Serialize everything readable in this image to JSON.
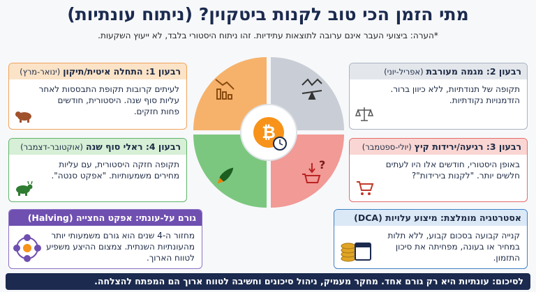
{
  "header": {
    "title": "מתי הזמן הכי טוב לקנות ביטקוין? (ניתוח עונתיות)",
    "note": "*הערה: ביצועי העבר אינם ערובה לתוצאות עתידיות. זהו ניתוח היסטורי בלבד, לא ייעוץ השקעות."
  },
  "quarters": [
    {
      "title": "רבעון 1: התחלה איטית/תיקון",
      "period": "(ינואר-מרץ)",
      "text": "לעיתים קרובות תקופת התבססות לאחר עליות סוף שנה. היסטורית, חודשים פחות חזקים."
    },
    {
      "title": "רבעון 2: מגמה מעורבת",
      "period": "(אפריל-יוני)",
      "text": "תקופה של תנודתיות, ללא כיוון ברור. הזדמנויות נקודתיות."
    },
    {
      "title": "רבעון 3: רגיעה/ירידות קיץ",
      "period": "(יולי-ספטמבר)",
      "text": "באופן היסטורי, חודשים אלו היו לעתים חלשים יותר. \"לקנות בירידות\"?"
    },
    {
      "title": "רבעון 4: ראלי סוף שנה",
      "period": "(אוקטובר-דצמבר)",
      "text": "תקופה חזקה היסטורית, עם עליות מחירים משמעותיות. \"אפקט סנטה\"."
    }
  ],
  "factors": [
    {
      "title": "גורם על-עונתי: אפקט החצייה (Halving)",
      "text": "מחזור ה-4 שנים הוא גורם משמעותי יותר מהעונתיות השנתית. צמצום ההיצע משפיע לטווח הארוך."
    },
    {
      "title": "אסטרטגיה מומלצת: מיצוע עלויות (DCA)",
      "text": "קנייה קבועה בסכום קבוע, ללא תלות במחיר או בעונה, מפחיתה את סיכון התזמון."
    }
  ],
  "summary": "לסיכום: עונתיות היא רק גורם אחד. מחקר מעמיק, ניהול סיכונים וחשיבה לטווח ארוך הם המפתח להצלחה."
}
